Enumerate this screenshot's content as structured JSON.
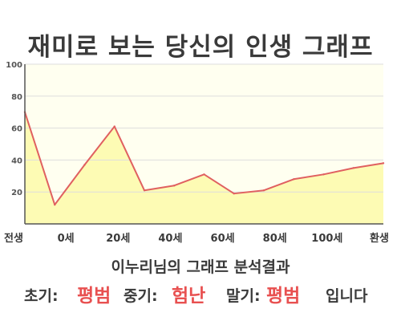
{
  "title": "재미로 보는 당신의 인생 그래프",
  "subtitle": "이누리님의 그래프 분석결과",
  "summary": {
    "early_label": "초기:",
    "early_value": "평범",
    "middle_label": "중기:",
    "middle_value": "험난",
    "late_label": "말기:",
    "late_value": "평범",
    "ending": "입니다"
  },
  "colors": {
    "line": "#e06060",
    "fill": "#fdfbb4",
    "plot_bg": "#fffff0",
    "grid": "#dddddd",
    "highlight": "#e85050"
  },
  "chart_data": {
    "type": "area",
    "title": "재미로 보는 당신의 인생 그래프",
    "xlabel": "",
    "ylabel": "",
    "ylim": [
      0,
      100
    ],
    "yticks": [
      20,
      40,
      60,
      80,
      100
    ],
    "x_tick_labels": [
      "전생",
      "0세",
      "20세",
      "40세",
      "60세",
      "80세",
      "100세",
      "환생"
    ],
    "grid": true,
    "series": [
      {
        "x": [
          -10,
          0,
          10,
          20,
          30,
          40,
          50,
          60,
          70,
          80,
          90,
          100,
          110
        ],
        "values": [
          70,
          12,
          37,
          61,
          21,
          24,
          31,
          19,
          21,
          28,
          31,
          35,
          38
        ]
      }
    ]
  }
}
